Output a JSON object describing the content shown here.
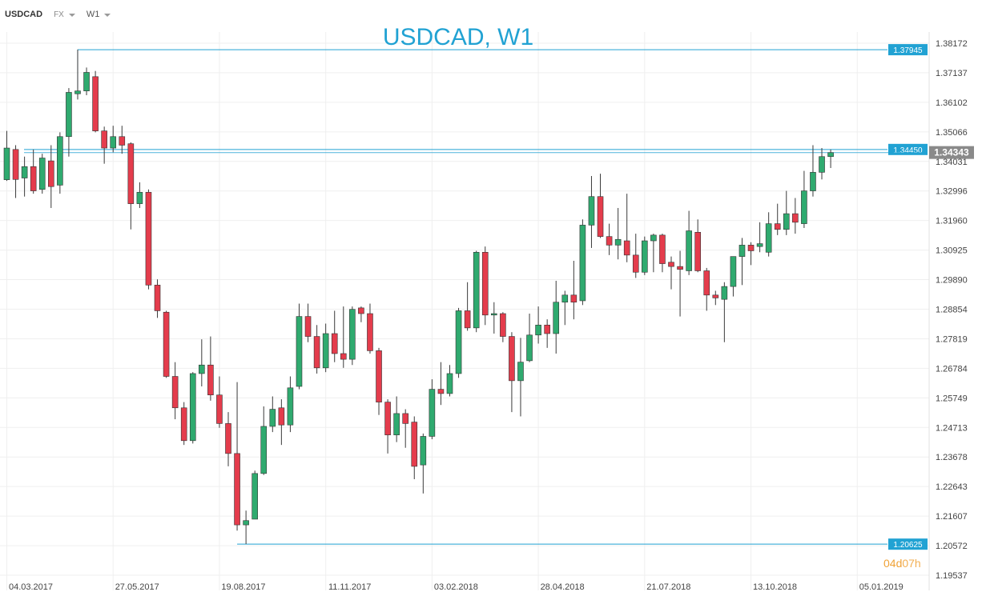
{
  "toolbar": {
    "symbol": "USDCAD",
    "market": "FX",
    "timeframe": "W1"
  },
  "colors": {
    "up": "#2faa6f",
    "down": "#e43c4c",
    "level": "#21a2d3",
    "grid": "#efefef",
    "current": "#8a8a8a",
    "countdown": "#f0a236"
  },
  "countdown": {
    "days": "04d",
    "hours": "07h"
  },
  "chart_data": {
    "type": "candlestick",
    "title": "USDCAD, W1",
    "ylim": [
      1.19537,
      1.3869
    ],
    "y_ticks": [
      "1.38172",
      "1.37137",
      "1.36102",
      "1.35066",
      "1.34031",
      "1.32996",
      "1.31960",
      "1.30925",
      "1.29890",
      "1.28854",
      "1.27819",
      "1.26784",
      "1.25749",
      "1.24713",
      "1.23678",
      "1.22643",
      "1.21607",
      "1.20572",
      "1.19537"
    ],
    "x_ticks": [
      "04.03.2017",
      "27.05.2017",
      "19.08.2017",
      "11.11.2017",
      "03.02.2018",
      "28.04.2018",
      "21.07.2018",
      "13.10.2018",
      "05.01.2019"
    ],
    "levels": [
      {
        "label": "1.37945",
        "value": 1.37945
      },
      {
        "label": "1.34450",
        "value": 1.3445
      },
      {
        "label": "1.20625",
        "value": 1.20625
      }
    ],
    "current_price": {
      "label": "1.34343",
      "value": 1.34343
    },
    "candles": [
      [
        1.3339,
        1.345,
        1.351,
        1.3335
      ],
      [
        1.3445,
        1.334,
        1.346,
        1.3275
      ],
      [
        1.3345,
        1.3385,
        1.342,
        1.328
      ],
      [
        1.3385,
        1.33,
        1.3445,
        1.329
      ],
      [
        1.3305,
        1.3415,
        1.343,
        1.329
      ],
      [
        1.3405,
        1.3315,
        1.346,
        1.324
      ],
      [
        1.332,
        1.349,
        1.3505,
        1.329
      ],
      [
        1.349,
        1.3645,
        1.366,
        1.342
      ],
      [
        1.364,
        1.365,
        1.3795,
        1.362
      ],
      [
        1.365,
        1.3715,
        1.3732,
        1.3635
      ],
      [
        1.37,
        1.351,
        1.372,
        1.3505
      ],
      [
        1.351,
        1.345,
        1.3525,
        1.3395
      ],
      [
        1.345,
        1.349,
        1.3528,
        1.3435
      ],
      [
        1.349,
        1.346,
        1.3528,
        1.343
      ],
      [
        1.3465,
        1.3255,
        1.347,
        1.3165
      ],
      [
        1.3255,
        1.3295,
        1.333,
        1.324
      ],
      [
        1.3295,
        1.297,
        1.3305,
        1.2955
      ],
      [
        1.297,
        1.288,
        1.299,
        1.2855
      ],
      [
        1.2875,
        1.265,
        1.288,
        1.2645
      ],
      [
        1.265,
        1.254,
        1.27,
        1.25
      ],
      [
        1.254,
        1.2425,
        1.256,
        1.241
      ],
      [
        1.2425,
        1.266,
        1.2665,
        1.2415
      ],
      [
        1.266,
        1.269,
        1.278,
        1.2615
      ],
      [
        1.269,
        1.2585,
        1.279,
        1.2565
      ],
      [
        1.2585,
        1.2485,
        1.265,
        1.247
      ],
      [
        1.2485,
        1.238,
        1.2525,
        1.2335
      ],
      [
        1.238,
        1.213,
        1.263,
        1.211
      ],
      [
        1.213,
        1.2145,
        1.218,
        1.2063
      ],
      [
        1.215,
        1.231,
        1.232,
        1.215
      ],
      [
        1.231,
        1.2475,
        1.2545,
        1.2305
      ],
      [
        1.2475,
        1.2535,
        1.258,
        1.2455
      ],
      [
        1.254,
        1.248,
        1.257,
        1.241
      ],
      [
        1.248,
        1.261,
        1.265,
        1.2455
      ],
      [
        1.2615,
        1.286,
        1.2905,
        1.2605
      ],
      [
        1.286,
        1.279,
        1.2905,
        1.277
      ],
      [
        1.279,
        1.268,
        1.283,
        1.266
      ],
      [
        1.268,
        1.28,
        1.2835,
        1.2665
      ],
      [
        1.28,
        1.273,
        1.288,
        1.27
      ],
      [
        1.273,
        1.271,
        1.2895,
        1.268
      ],
      [
        1.271,
        1.2885,
        1.2895,
        1.269
      ],
      [
        1.289,
        1.287,
        1.2895,
        1.284
      ],
      [
        1.287,
        1.274,
        1.2905,
        1.273
      ],
      [
        1.274,
        1.256,
        1.275,
        1.2515
      ],
      [
        1.256,
        1.2445,
        1.257,
        1.238
      ],
      [
        1.2445,
        1.252,
        1.258,
        1.242
      ],
      [
        1.252,
        1.2485,
        1.2535,
        1.24
      ],
      [
        1.249,
        1.2335,
        1.251,
        1.229
      ],
      [
        1.234,
        1.244,
        1.245,
        1.224
      ],
      [
        1.244,
        1.2605,
        1.264,
        1.243
      ],
      [
        1.2605,
        1.259,
        1.27,
        1.255
      ],
      [
        1.259,
        1.266,
        1.269,
        1.258
      ],
      [
        1.266,
        1.288,
        1.289,
        1.2645
      ],
      [
        1.288,
        1.282,
        1.298,
        1.281
      ],
      [
        1.282,
        1.3085,
        1.309,
        1.2805
      ],
      [
        1.3085,
        1.2865,
        1.3105,
        1.283
      ],
      [
        1.2865,
        1.287,
        1.291,
        1.28
      ],
      [
        1.287,
        1.279,
        1.2875,
        1.277
      ],
      [
        1.279,
        1.2635,
        1.2805,
        1.2525
      ],
      [
        1.2635,
        1.27,
        1.2785,
        1.251
      ],
      [
        1.2705,
        1.2795,
        1.287,
        1.27
      ],
      [
        1.2795,
        1.283,
        1.2895,
        1.2765
      ],
      [
        1.283,
        1.28,
        1.285,
        1.275
      ],
      [
        1.28,
        1.291,
        1.2985,
        1.273
      ],
      [
        1.291,
        1.2935,
        1.295,
        1.283
      ],
      [
        1.2935,
        1.291,
        1.3055,
        1.285
      ],
      [
        1.2915,
        1.318,
        1.32,
        1.29
      ],
      [
        1.318,
        1.328,
        1.3352,
        1.31
      ],
      [
        1.328,
        1.314,
        1.336,
        1.3135
      ],
      [
        1.314,
        1.311,
        1.3185,
        1.3075
      ],
      [
        1.311,
        1.313,
        1.324,
        1.306
      ],
      [
        1.3125,
        1.3075,
        1.329,
        1.305
      ],
      [
        1.3075,
        1.3015,
        1.315,
        1.2995
      ],
      [
        1.3015,
        1.3125,
        1.314,
        1.3005
      ],
      [
        1.3125,
        1.3145,
        1.315,
        1.3015
      ],
      [
        1.3145,
        1.3045,
        1.315,
        1.3015
      ],
      [
        1.305,
        1.3035,
        1.307,
        1.2955
      ],
      [
        1.3035,
        1.3025,
        1.309,
        1.286
      ],
      [
        1.302,
        1.316,
        1.323,
        1.3005
      ],
      [
        1.3155,
        1.302,
        1.32,
        1.3015
      ],
      [
        1.302,
        1.2935,
        1.303,
        1.288
      ],
      [
        1.2935,
        1.2925,
        1.295,
        1.29
      ],
      [
        1.292,
        1.2965,
        1.298,
        1.277
      ],
      [
        1.2965,
        1.307,
        1.307,
        1.293
      ],
      [
        1.307,
        1.311,
        1.3135,
        1.297
      ],
      [
        1.311,
        1.309,
        1.312,
        1.304
      ],
      [
        1.3105,
        1.3115,
        1.319,
        1.3085
      ],
      [
        1.3085,
        1.3185,
        1.3225,
        1.307
      ],
      [
        1.3185,
        1.3165,
        1.3255,
        1.3145
      ],
      [
        1.3165,
        1.322,
        1.33,
        1.3145
      ],
      [
        1.322,
        1.319,
        1.3275,
        1.315
      ],
      [
        1.3185,
        1.33,
        1.337,
        1.317
      ],
      [
        1.33,
        1.3365,
        1.346,
        1.328
      ],
      [
        1.3365,
        1.342,
        1.345,
        1.334
      ],
      [
        1.342,
        1.3434,
        1.3445,
        1.338
      ]
    ]
  }
}
